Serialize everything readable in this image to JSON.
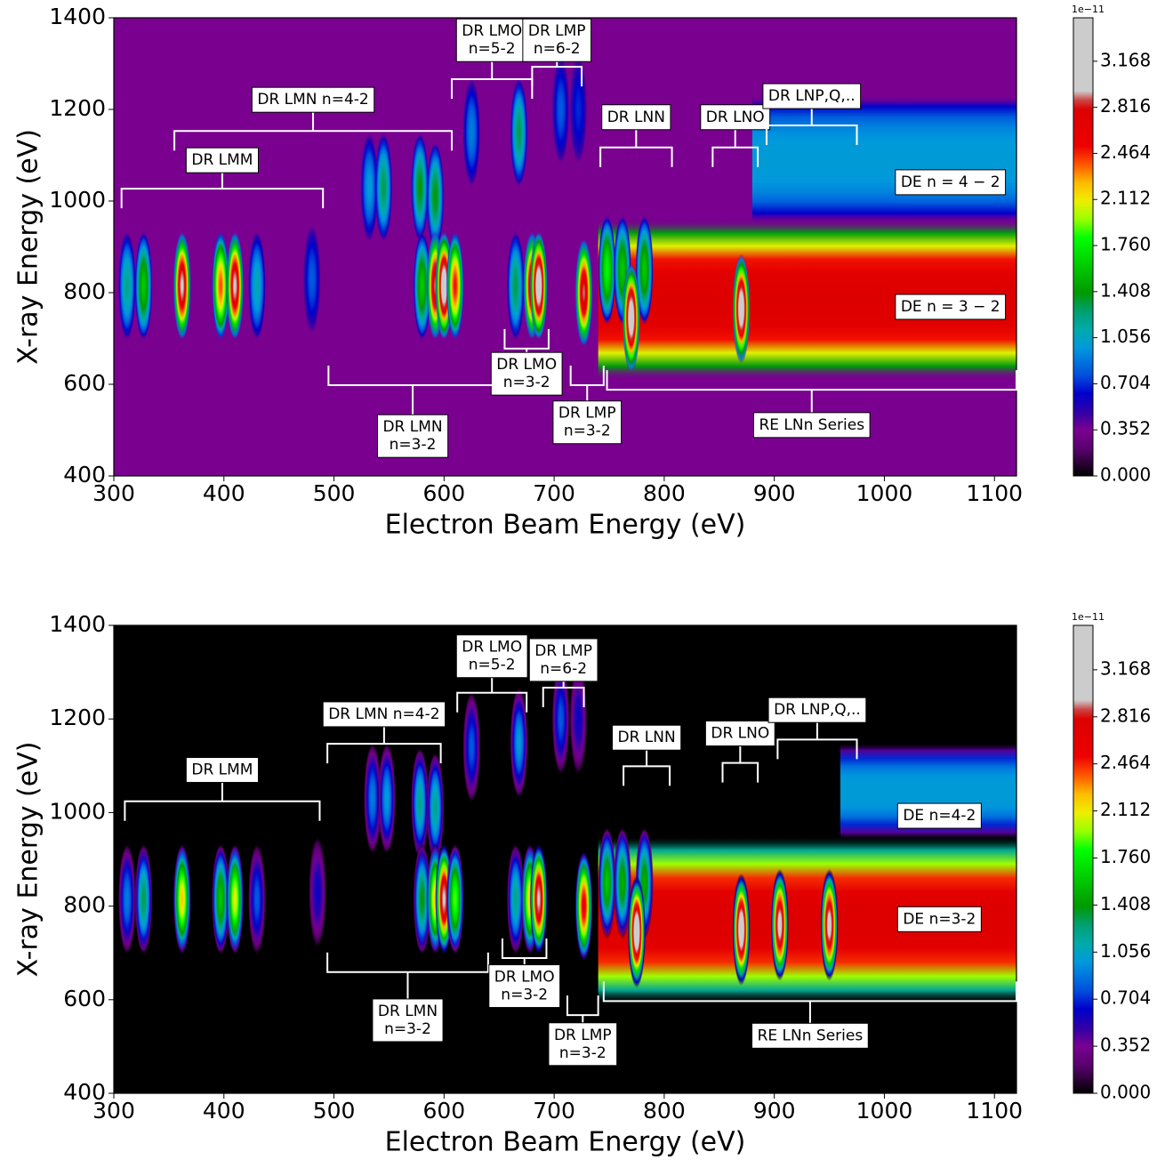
{
  "chart_data": [
    {
      "type": "heatmap",
      "xlabel": "Electron Beam Energy (eV)",
      "ylabel": "X-ray Energy (eV)",
      "xlim": [
        300,
        1120
      ],
      "ylim": [
        400,
        1400
      ],
      "xticks": [
        300,
        400,
        500,
        600,
        700,
        800,
        900,
        1000,
        1100
      ],
      "yticks": [
        400,
        600,
        800,
        1000,
        1200,
        1400
      ],
      "colormap": "nipy_spectral",
      "clim": [
        0,
        3.5
      ],
      "colorbar_offset": "1e−11",
      "cticks": [
        {
          "value": 0,
          "label": "0.000"
        },
        {
          "value": 0.352,
          "label": "0.352"
        },
        {
          "value": 0.704,
          "label": "0.704"
        },
        {
          "value": 1.056,
          "label": "1.056"
        },
        {
          "value": 1.408,
          "label": "1.408"
        },
        {
          "value": 1.76,
          "label": "1.760"
        },
        {
          "value": 2.112,
          "label": "2.112"
        },
        {
          "value": 2.464,
          "label": "2.464"
        },
        {
          "value": 2.816,
          "label": "2.816"
        },
        {
          "value": 3.168,
          "label": "3.168"
        }
      ],
      "background": 0.35,
      "bands": [
        {
          "x": [
            740,
            1120
          ],
          "y": [
            610,
            960
          ],
          "value": 2.8
        },
        {
          "x": [
            880,
            1120
          ],
          "y": [
            950,
            1230
          ],
          "value": 1.0
        }
      ],
      "spots": [
        {
          "x": 312,
          "y": 815,
          "value": 1.2
        },
        {
          "x": 327,
          "y": 815,
          "value": 1.6
        },
        {
          "x": 362,
          "y": 815,
          "value": 3.0
        },
        {
          "x": 397,
          "y": 815,
          "value": 2.4
        },
        {
          "x": 410,
          "y": 815,
          "value": 3.0
        },
        {
          "x": 430,
          "y": 815,
          "value": 1.1
        },
        {
          "x": 480,
          "y": 830,
          "value": 0.8
        },
        {
          "x": 532,
          "y": 1030,
          "value": 1.0
        },
        {
          "x": 545,
          "y": 1030,
          "value": 1.3
        },
        {
          "x": 578,
          "y": 1030,
          "value": 1.4
        },
        {
          "x": 592,
          "y": 1010,
          "value": 1.4
        },
        {
          "x": 580,
          "y": 815,
          "value": 1.6
        },
        {
          "x": 592,
          "y": 815,
          "value": 2.9
        },
        {
          "x": 600,
          "y": 815,
          "value": 3.3
        },
        {
          "x": 610,
          "y": 815,
          "value": 2.5
        },
        {
          "x": 625,
          "y": 1150,
          "value": 0.9
        },
        {
          "x": 668,
          "y": 1150,
          "value": 1.3
        },
        {
          "x": 706,
          "y": 1200,
          "value": 0.8
        },
        {
          "x": 722,
          "y": 1200,
          "value": 0.7
        },
        {
          "x": 665,
          "y": 815,
          "value": 1.3
        },
        {
          "x": 680,
          "y": 815,
          "value": 2.9
        },
        {
          "x": 686,
          "y": 815,
          "value": 3.3
        },
        {
          "x": 727,
          "y": 800,
          "value": 2.9
        },
        {
          "x": 748,
          "y": 850,
          "value": 1.8
        },
        {
          "x": 762,
          "y": 850,
          "value": 1.6
        },
        {
          "x": 782,
          "y": 850,
          "value": 1.6
        },
        {
          "x": 770,
          "y": 745,
          "value": 3.3
        },
        {
          "x": 870,
          "y": 765,
          "value": 3.3
        }
      ],
      "annotations": [
        {
          "text": [
            "DR LMM"
          ],
          "bracket": {
            "x": [
              307,
              490
            ],
            "y": 1027
          },
          "label_y": 1089
        },
        {
          "text": [
            "DR LMN n=4-2"
          ],
          "bracket": {
            "x": [
              355,
              607
            ],
            "y": 1153
          },
          "label_y": 1221
        },
        {
          "text": [
            "DR LMO",
            "n=5-2"
          ],
          "bracket": {
            "x": [
              607,
              680
            ],
            "y": 1266
          },
          "label_y": 1351
        },
        {
          "text": [
            "DR LMP",
            "n=6-2"
          ],
          "bracket": {
            "x": [
              680,
              725
            ],
            "y": 1293
          },
          "label_y": 1351
        },
        {
          "text": [
            "DR LNN"
          ],
          "bracket": {
            "x": [
              742,
              807
            ],
            "y": 1117
          },
          "label_y": 1183
        },
        {
          "text": [
            "DR LNO"
          ],
          "bracket": {
            "x": [
              844,
              885
            ],
            "y": 1117
          },
          "label_y": 1183
        },
        {
          "text": [
            "DR LNP,Q,.."
          ],
          "bracket": {
            "x": [
              893,
              975
            ],
            "y": 1165
          },
          "label_y": 1229
        },
        {
          "text": [
            "DE n = 4 − 2"
          ],
          "label_x": 1060,
          "label_y": 1041
        },
        {
          "text": [
            "DE n = 3 − 2"
          ],
          "label_x": 1060,
          "label_y": 769
        },
        {
          "text": [
            "DR LMO",
            "n=3-2"
          ],
          "bracket": {
            "x": [
              655,
              695
            ],
            "y": 678
          },
          "label_y": 623
        },
        {
          "text": [
            "DR LMN",
            "n=3-2"
          ],
          "bracket": {
            "x": [
              495,
              648
            ],
            "y": 598
          },
          "label_y": 487
        },
        {
          "text": [
            "DR LMP",
            "n=3-2"
          ],
          "bracket": {
            "x": [
              715,
              745
            ],
            "y": 598
          },
          "label_y": 517
        },
        {
          "text": [
            "RE LNn Series"
          ],
          "bracket": {
            "x": [
              748,
              1120
            ],
            "y": 588
          },
          "label_y": 511
        }
      ]
    },
    {
      "type": "heatmap",
      "xlabel": "Electron Beam Energy (eV)",
      "ylabel": "X-ray Energy (eV)",
      "xlim": [
        300,
        1120
      ],
      "ylim": [
        400,
        1400
      ],
      "xticks": [
        300,
        400,
        500,
        600,
        700,
        800,
        900,
        1000,
        1100
      ],
      "yticks": [
        400,
        600,
        800,
        1000,
        1200,
        1400
      ],
      "colormap": "nipy_spectral",
      "clim": [
        0,
        3.5
      ],
      "colorbar_offset": "1e−11",
      "cticks": [
        {
          "value": 0,
          "label": "0.000"
        },
        {
          "value": 0.352,
          "label": "0.352"
        },
        {
          "value": 0.704,
          "label": "0.704"
        },
        {
          "value": 1.056,
          "label": "1.056"
        },
        {
          "value": 1.408,
          "label": "1.408"
        },
        {
          "value": 1.76,
          "label": "1.760"
        },
        {
          "value": 2.112,
          "label": "2.112"
        },
        {
          "value": 2.464,
          "label": "2.464"
        },
        {
          "value": 2.816,
          "label": "2.816"
        },
        {
          "value": 3.168,
          "label": "3.168"
        }
      ],
      "background": 0,
      "bands": [
        {
          "x": [
            740,
            1120
          ],
          "y": [
            590,
            950
          ],
          "value": 2.8
        },
        {
          "x": [
            960,
            1120
          ],
          "y": [
            940,
            1150
          ],
          "value": 1.0
        }
      ],
      "spots": [
        {
          "x": 312,
          "y": 815,
          "value": 0.9
        },
        {
          "x": 327,
          "y": 815,
          "value": 1.3
        },
        {
          "x": 362,
          "y": 815,
          "value": 2.2
        },
        {
          "x": 397,
          "y": 815,
          "value": 1.6
        },
        {
          "x": 410,
          "y": 815,
          "value": 2.1
        },
        {
          "x": 430,
          "y": 815,
          "value": 0.8
        },
        {
          "x": 485,
          "y": 830,
          "value": 0.6
        },
        {
          "x": 535,
          "y": 1030,
          "value": 0.9
        },
        {
          "x": 548,
          "y": 1030,
          "value": 1.0
        },
        {
          "x": 578,
          "y": 1020,
          "value": 1.2
        },
        {
          "x": 592,
          "y": 1010,
          "value": 1.2
        },
        {
          "x": 580,
          "y": 815,
          "value": 1.4
        },
        {
          "x": 592,
          "y": 815,
          "value": 2.2
        },
        {
          "x": 600,
          "y": 815,
          "value": 3.0
        },
        {
          "x": 610,
          "y": 815,
          "value": 1.9
        },
        {
          "x": 625,
          "y": 1140,
          "value": 0.8
        },
        {
          "x": 668,
          "y": 1150,
          "value": 1.0
        },
        {
          "x": 706,
          "y": 1200,
          "value": 0.8
        },
        {
          "x": 722,
          "y": 1200,
          "value": 0.6
        },
        {
          "x": 665,
          "y": 815,
          "value": 1.2
        },
        {
          "x": 678,
          "y": 815,
          "value": 2.2
        },
        {
          "x": 686,
          "y": 815,
          "value": 3.0
        },
        {
          "x": 727,
          "y": 800,
          "value": 2.6
        },
        {
          "x": 748,
          "y": 850,
          "value": 1.6
        },
        {
          "x": 762,
          "y": 850,
          "value": 1.5
        },
        {
          "x": 782,
          "y": 850,
          "value": 1.5
        },
        {
          "x": 775,
          "y": 745,
          "value": 3.3
        },
        {
          "x": 870,
          "y": 750,
          "value": 3.3
        },
        {
          "x": 905,
          "y": 760,
          "value": 3.1
        },
        {
          "x": 950,
          "y": 760,
          "value": 3.1
        }
      ],
      "annotations": [
        {
          "text": [
            "DR LMM"
          ],
          "bracket": {
            "x": [
              310,
              487
            ],
            "y": 1024
          },
          "label_y": 1091
        },
        {
          "text": [
            "DR LMN n=4-2"
          ],
          "bracket": {
            "x": [
              494,
              597
            ],
            "y": 1147
          },
          "label_y": 1210
        },
        {
          "text": [
            "DR LMO",
            "n=5-2"
          ],
          "bracket": {
            "x": [
              612,
              675
            ],
            "y": 1256
          },
          "label_y": 1334
        },
        {
          "text": [
            "DR LMP",
            "n=6-2"
          ],
          "bracket": {
            "x": [
              690,
              727
            ],
            "y": 1267
          },
          "label_y": 1326
        },
        {
          "text": [
            "DR LNN"
          ],
          "bracket": {
            "x": [
              763,
              805
            ],
            "y": 1099
          },
          "label_y": 1160
        },
        {
          "text": [
            "DR LNO"
          ],
          "bracket": {
            "x": [
              853,
              885
            ],
            "y": 1106
          },
          "label_y": 1169
        },
        {
          "text": [
            "DR LNP,Q,.."
          ],
          "bracket": {
            "x": [
              903,
              975
            ],
            "y": 1156
          },
          "label_y": 1219
        },
        {
          "text": [
            "DE n=4-2"
          ],
          "label_x": 1050,
          "label_y": 993
        },
        {
          "text": [
            "DE n=3-2"
          ],
          "label_x": 1050,
          "label_y": 772
        },
        {
          "text": [
            "DR LMN",
            "n=3-2"
          ],
          "bracket": {
            "x": [
              494,
              640
            ],
            "y": 659
          },
          "label_y": 556
        },
        {
          "text": [
            "DR LMO",
            "n=3-2"
          ],
          "bracket": {
            "x": [
              653,
              693
            ],
            "y": 689
          },
          "label_y": 629
        },
        {
          "text": [
            "DR LMP",
            "n=3-2"
          ],
          "bracket": {
            "x": [
              712,
              740
            ],
            "y": 567
          },
          "label_y": 505
        },
        {
          "text": [
            "RE LNn Series"
          ],
          "bracket": {
            "x": [
              745,
              1120
            ],
            "y": 597
          },
          "label_y": 523
        }
      ]
    }
  ]
}
